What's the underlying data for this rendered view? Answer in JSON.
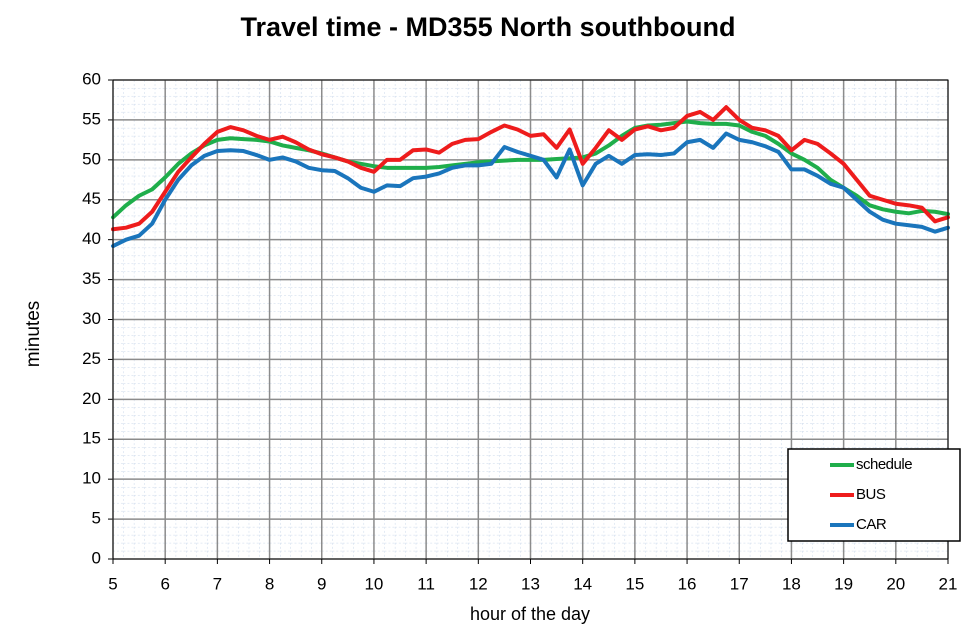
{
  "chart_data": {
    "type": "line",
    "title": "Travel time - MD355 North southbound",
    "x_label": "hour of the day",
    "y_label": "minutes",
    "x": [
      5,
      5.25,
      5.5,
      5.75,
      6,
      6.25,
      6.5,
      6.75,
      7,
      7.25,
      7.5,
      7.75,
      8,
      8.25,
      8.5,
      8.75,
      9,
      9.25,
      9.5,
      9.75,
      10,
      10.25,
      10.5,
      10.75,
      11,
      11.25,
      11.5,
      11.75,
      12,
      12.25,
      12.5,
      12.75,
      13,
      13.25,
      13.5,
      13.75,
      14,
      14.25,
      14.5,
      14.75,
      15,
      15.25,
      15.5,
      15.75,
      16,
      16.25,
      16.5,
      16.75,
      17,
      17.25,
      17.5,
      17.75,
      18,
      18.25,
      18.5,
      18.75,
      19,
      19.25,
      19.5,
      19.75,
      20,
      20.25,
      20.5,
      20.75,
      21
    ],
    "series": [
      {
        "name": "schedule",
        "color": "#1fae4b",
        "values": [
          42.8,
          44.3,
          45.5,
          46.3,
          47.8,
          49.5,
          50.8,
          51.8,
          52.5,
          52.7,
          52.6,
          52.5,
          52.3,
          51.8,
          51.5,
          51.2,
          50.8,
          50.3,
          49.8,
          49.5,
          49.2,
          49.0,
          49.0,
          49.0,
          49.0,
          49.1,
          49.3,
          49.5,
          49.7,
          49.8,
          49.9,
          50.0,
          50.0,
          50.0,
          50.1,
          50.2,
          50.3,
          50.8,
          51.8,
          53.0,
          54.0,
          54.3,
          54.4,
          54.6,
          54.8,
          54.6,
          54.5,
          54.5,
          54.3,
          53.5,
          53.0,
          52.0,
          50.8,
          50.0,
          49.0,
          47.5,
          46.5,
          45.5,
          44.3,
          43.8,
          43.5,
          43.3,
          43.6,
          43.5,
          43.2
        ]
      },
      {
        "name": "BUS",
        "color": "#ee1c1c",
        "values": [
          41.3,
          41.5,
          42.0,
          43.5,
          46.0,
          48.5,
          50.3,
          52.0,
          53.5,
          54.1,
          53.7,
          53.0,
          52.5,
          52.9,
          52.2,
          51.3,
          50.7,
          50.3,
          49.8,
          49.0,
          48.5,
          50.0,
          50.0,
          51.2,
          51.3,
          50.9,
          52.0,
          52.5,
          52.6,
          53.5,
          54.3,
          53.8,
          53.0,
          53.2,
          51.5,
          53.8,
          49.5,
          51.5,
          53.7,
          52.5,
          53.8,
          54.2,
          53.7,
          54.0,
          55.5,
          56.0,
          55.0,
          56.6,
          55.0,
          54.0,
          53.7,
          53.0,
          51.2,
          52.5,
          52.0,
          50.8,
          49.5,
          47.5,
          45.5,
          45.0,
          44.5,
          44.3,
          44.0,
          42.3,
          42.8
        ]
      },
      {
        "name": "CAR",
        "color": "#1a75bc",
        "values": [
          39.2,
          40.0,
          40.5,
          42.0,
          45.0,
          47.5,
          49.3,
          50.5,
          51.1,
          51.2,
          51.1,
          50.6,
          50.0,
          50.3,
          49.8,
          49.0,
          48.7,
          48.6,
          47.7,
          46.5,
          46.0,
          46.8,
          46.7,
          47.7,
          47.9,
          48.3,
          49.0,
          49.3,
          49.3,
          49.5,
          51.6,
          51.0,
          50.5,
          50.0,
          47.8,
          51.3,
          46.8,
          49.5,
          50.5,
          49.5,
          50.6,
          50.7,
          50.6,
          50.8,
          52.2,
          52.5,
          51.5,
          53.3,
          52.5,
          52.2,
          51.7,
          51.0,
          48.8,
          48.8,
          48.0,
          47.0,
          46.5,
          45.0,
          43.5,
          42.5,
          42.0,
          41.8,
          41.6,
          41.0,
          41.5
        ]
      }
    ],
    "xlim": [
      5,
      21
    ],
    "xticks": [
      5,
      6,
      7,
      8,
      9,
      10,
      11,
      12,
      13,
      14,
      15,
      16,
      17,
      18,
      19,
      20,
      21
    ],
    "ylim": [
      0,
      60
    ],
    "yticks": [
      0,
      5,
      10,
      15,
      20,
      25,
      30,
      35,
      40,
      45,
      50,
      55,
      60
    ],
    "grid": true,
    "legend": "lower right"
  }
}
